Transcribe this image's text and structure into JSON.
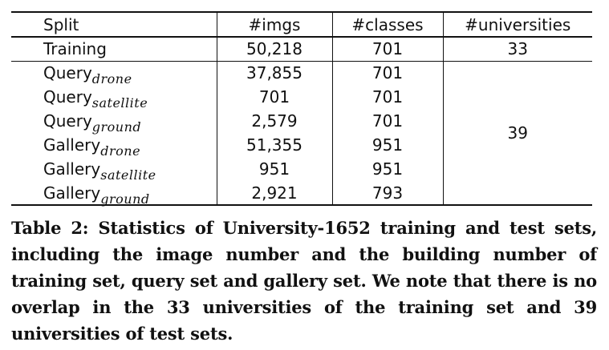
{
  "table": {
    "headers": [
      "Split",
      "#imgs",
      "#classes",
      "#universities"
    ],
    "training": {
      "split": "Training",
      "imgs": "50,218",
      "classes": "701",
      "universities": "33"
    },
    "test_universities": "39",
    "test_rows": [
      {
        "split_main": "Query",
        "split_sub": "drone",
        "imgs": "37,855",
        "classes": "701"
      },
      {
        "split_main": "Query",
        "split_sub": "satellite",
        "imgs": "701",
        "classes": "701"
      },
      {
        "split_main": "Query",
        "split_sub": "ground",
        "imgs": "2,579",
        "classes": "701"
      },
      {
        "split_main": "Gallery",
        "split_sub": "drone",
        "imgs": "51,355",
        "classes": "951"
      },
      {
        "split_main": "Gallery",
        "split_sub": "satellite",
        "imgs": "951",
        "classes": "951"
      },
      {
        "split_main": "Gallery",
        "split_sub": "ground",
        "imgs": "2,921",
        "classes": "793"
      }
    ]
  },
  "caption": "Table 2: Statistics of University-1652 training and test sets, including the image number and the building number of training set, query set and gallery set. We note that there is no overlap in the 33 universities of the training set and 39 universities of test sets."
}
